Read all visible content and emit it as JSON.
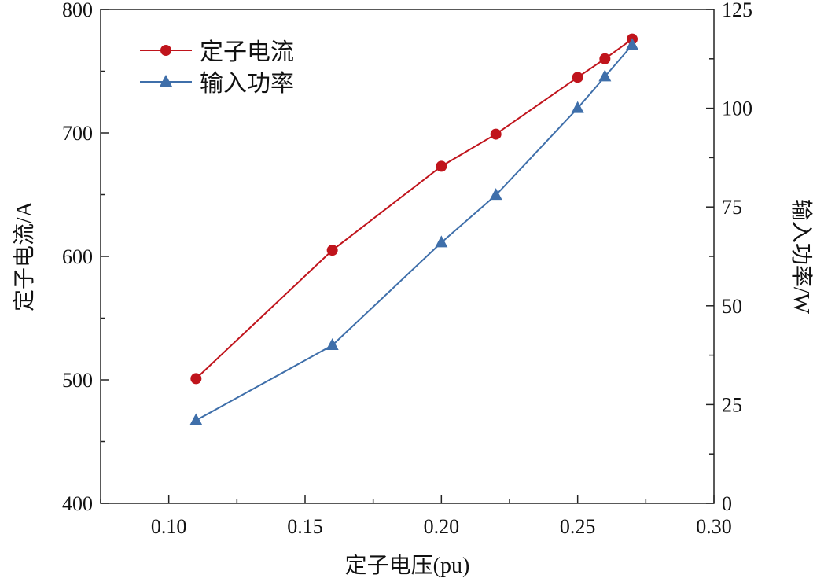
{
  "chart_data": {
    "type": "line",
    "title": "",
    "xlabel": "定子电压(pu)",
    "ylabel_left": "定子电流/A",
    "ylabel_right": "输入功率/W",
    "xlim": [
      0.075,
      0.3
    ],
    "ylim_left": [
      400,
      800
    ],
    "ylim_right": [
      0,
      125
    ],
    "x_ticks": [
      "0.10",
      "0.15",
      "0.20",
      "0.25",
      "0.30"
    ],
    "y_left_ticks": [
      "400",
      "500",
      "600",
      "700",
      "800"
    ],
    "y_right_ticks": [
      "0",
      "25",
      "50",
      "75",
      "100",
      "125"
    ],
    "grid": false,
    "legend_position": "top-left",
    "series": [
      {
        "name": "定子电流",
        "axis": "left",
        "marker": "circle",
        "color": "#c0141c",
        "x": [
          0.11,
          0.16,
          0.2,
          0.22,
          0.25,
          0.26,
          0.27
        ],
        "y": [
          501,
          605,
          673,
          699,
          745,
          760,
          776
        ]
      },
      {
        "name": "输入功率",
        "axis": "right",
        "marker": "triangle",
        "color": "#3f6faa",
        "x": [
          0.11,
          0.16,
          0.2,
          0.22,
          0.25,
          0.26,
          0.27
        ],
        "y": [
          21,
          40,
          66,
          78,
          100,
          108,
          116
        ]
      }
    ]
  }
}
